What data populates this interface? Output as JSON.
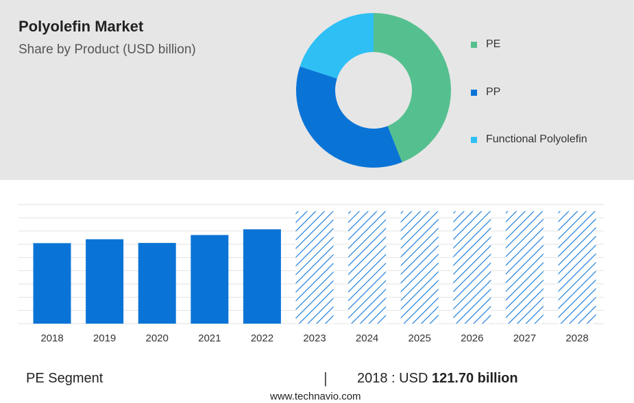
{
  "header": {
    "title": "Polyolefin Market",
    "subtitle": "Share by Product (USD billion)"
  },
  "colors": {
    "pe": "#55c08f",
    "pp": "#0a74d6",
    "functional": "#2ec0f5",
    "bar": "#0a74d6",
    "forecast_hatch": "#0a74d6",
    "panel": "#e6e6e6"
  },
  "chart_data": [
    {
      "type": "pie",
      "donut": true,
      "legend_position": "right",
      "slices": [
        {
          "label": "PE",
          "value": 44,
          "color": "#55c08f"
        },
        {
          "label": "PP",
          "value": 36,
          "color": "#0a74d6"
        },
        {
          "label": "Functional Polyolefin",
          "value": 20,
          "color": "#2ec0f5"
        }
      ]
    },
    {
      "type": "bar",
      "categories": [
        "2018",
        "2019",
        "2020",
        "2021",
        "2022",
        "2023",
        "2024",
        "2025",
        "2026",
        "2027",
        "2028"
      ],
      "values": [
        121.7,
        127.6,
        122.0,
        134.0,
        142.6,
        null,
        null,
        null,
        null,
        null,
        null
      ],
      "forecast": [
        false,
        false,
        false,
        false,
        false,
        true,
        true,
        true,
        true,
        true,
        true
      ],
      "forecast_level": 170,
      "ylim": [
        0,
        180
      ],
      "grid": true
    }
  ],
  "footer": {
    "segment_label": "PE Segment",
    "separator": "|",
    "value_prefix": "2018 : USD",
    "value_bold": "121.70 billion",
    "source": "www.technavio.com"
  }
}
